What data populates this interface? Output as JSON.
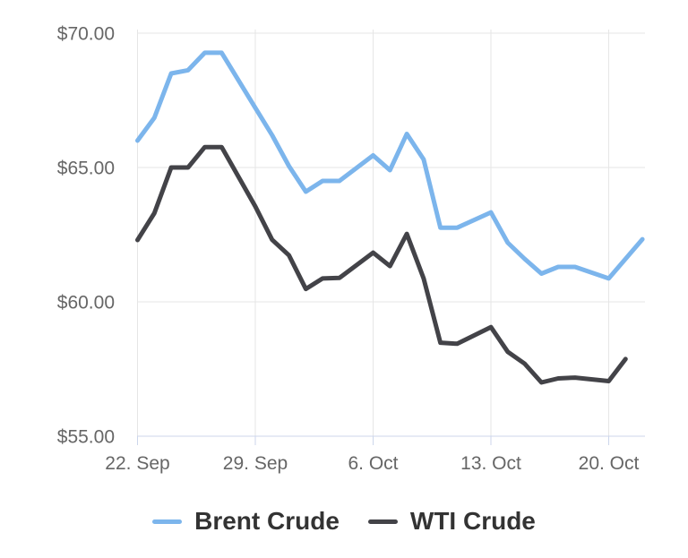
{
  "chart_data": {
    "type": "line",
    "title": "",
    "x_axis": {
      "tick_labels": [
        "22. Sep",
        "29. Sep",
        "6. Oct",
        "13. Oct",
        "20. Oct"
      ],
      "tick_day_offsets": [
        0,
        7,
        14,
        21,
        28
      ],
      "days_note": "day offset 0 = 22. Sep; weekend Saturdays carry Friday value; Sundays interpolated"
    },
    "y_axis": {
      "min": 55,
      "max": 70,
      "tick_values": [
        55,
        60,
        65,
        70
      ],
      "tick_labels": [
        "$55.00",
        "$60.00",
        "$65.00",
        "$70.00"
      ]
    },
    "grid": true,
    "legend_position": "bottom",
    "series": [
      {
        "name": "Brent Crude",
        "color": "#7cb5ec",
        "points": [
          [
            0,
            66.0
          ],
          [
            1,
            66.85
          ],
          [
            2,
            68.5
          ],
          [
            3,
            68.62
          ],
          [
            4,
            69.27
          ],
          [
            5,
            69.27
          ],
          [
            7,
            67.22
          ],
          [
            8,
            66.2
          ],
          [
            9,
            65.05
          ],
          [
            10,
            64.1
          ],
          [
            11,
            64.5
          ],
          [
            12,
            64.5
          ],
          [
            14,
            65.45
          ],
          [
            15,
            64.9
          ],
          [
            16,
            66.25
          ],
          [
            17,
            65.3
          ],
          [
            18,
            62.76
          ],
          [
            19,
            62.76
          ],
          [
            21,
            63.33
          ],
          [
            22,
            62.2
          ],
          [
            23,
            61.6
          ],
          [
            24,
            61.05
          ],
          [
            25,
            61.3
          ],
          [
            26,
            61.3
          ],
          [
            28,
            60.87
          ],
          [
            30,
            62.33
          ]
        ]
      },
      {
        "name": "WTI Crude",
        "color": "#434348",
        "points": [
          [
            0,
            62.3
          ],
          [
            1,
            63.3
          ],
          [
            2,
            65.0
          ],
          [
            3,
            65.0
          ],
          [
            4,
            65.76
          ],
          [
            5,
            65.76
          ],
          [
            7,
            63.55
          ],
          [
            8,
            62.31
          ],
          [
            9,
            61.73
          ],
          [
            10,
            60.48
          ],
          [
            11,
            60.87
          ],
          [
            12,
            60.89
          ],
          [
            14,
            61.83
          ],
          [
            15,
            61.33
          ],
          [
            16,
            62.53
          ],
          [
            17,
            60.87
          ],
          [
            18,
            58.48
          ],
          [
            19,
            58.44
          ],
          [
            21,
            59.06
          ],
          [
            22,
            58.14
          ],
          [
            23,
            57.7
          ],
          [
            24,
            57.0
          ],
          [
            25,
            57.15
          ],
          [
            26,
            57.18
          ],
          [
            28,
            57.05
          ],
          [
            29,
            57.87
          ]
        ]
      }
    ],
    "colors": {
      "grid": "#e6e6e6",
      "axis_line": "#ccd6eb",
      "axis_label": "#666666",
      "legend_text": "#333333",
      "background": "#ffffff"
    }
  }
}
